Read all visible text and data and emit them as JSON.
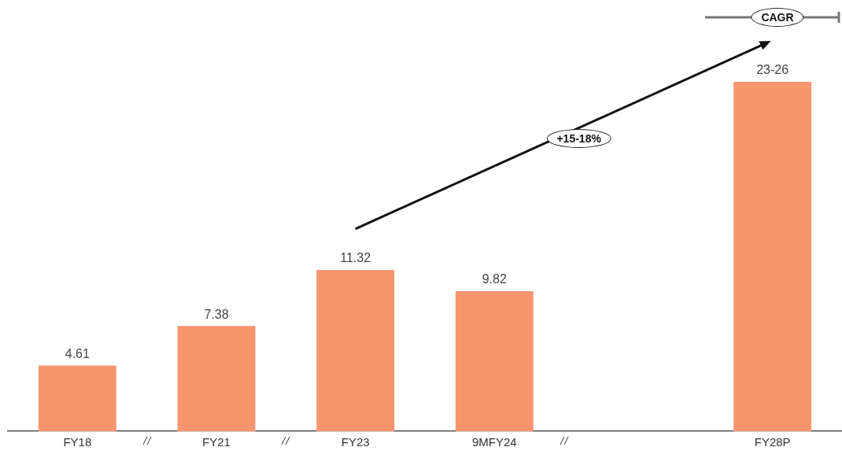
{
  "chart_data": {
    "type": "bar",
    "categories": [
      "FY18",
      "FY21",
      "FY23",
      "9MFY24",
      null,
      "FY28P"
    ],
    "values": [
      4.61,
      7.38,
      11.32,
      9.82,
      null,
      24.5
    ],
    "value_labels": [
      "4.61",
      "7.38",
      "11.32",
      "9.82",
      null,
      "23-26"
    ],
    "color": "#f8956f",
    "annotations": [
      "+15-18%",
      "CAGR"
    ],
    "grid": false,
    "legend": false,
    "tick_labels": "x"
  }
}
